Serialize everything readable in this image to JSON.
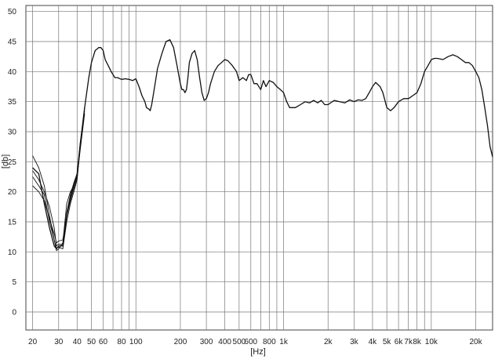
{
  "chart_data": {
    "type": "line",
    "xscale": "log",
    "xlim": [
      18,
      26000
    ],
    "ylim": [
      -3,
      51
    ],
    "grid": true,
    "xlabel": "[Hz]",
    "ylabel": "[db]",
    "yticks": [
      0,
      5,
      10,
      15,
      20,
      25,
      30,
      35,
      40,
      45,
      50
    ],
    "ytick_labels": [
      "0",
      "5",
      "10",
      "15",
      "20",
      "25",
      "30",
      "35",
      "40",
      "45",
      "50"
    ],
    "xticks": [
      20,
      30,
      40,
      50,
      60,
      80,
      100,
      200,
      300,
      400,
      500,
      600,
      800,
      1000,
      2000,
      3000,
      4000,
      5000,
      6000,
      7000,
      8000,
      10000,
      20000
    ],
    "xtick_labels": [
      "20",
      "30",
      "40",
      "50",
      "60",
      "80",
      "100",
      "200",
      "300",
      "400",
      "500",
      "600",
      "800",
      "1k",
      "2k",
      "3k",
      "4k",
      "5k",
      "6k",
      "7k",
      "8k",
      "10k",
      "20k"
    ],
    "x_minor_gridlines": [
      70,
      90,
      700,
      900,
      9000
    ],
    "series": [
      {
        "x": [
          20,
          22,
          24,
          26,
          28,
          29,
          30,
          32,
          34,
          36,
          38,
          40,
          42,
          45,
          48,
          50,
          53,
          56,
          58,
          60,
          62,
          65,
          68,
          72,
          75,
          80,
          85,
          90,
          95,
          100,
          105,
          110,
          115,
          118,
          122,
          125,
          128,
          132,
          136,
          140,
          150,
          160,
          170,
          180,
          190,
          200,
          205,
          210,
          215,
          220,
          225,
          230,
          240,
          250,
          260,
          270,
          280,
          290,
          300,
          310,
          320,
          340,
          360,
          380,
          400,
          420,
          450,
          480,
          500,
          530,
          560,
          580,
          600,
          630,
          660,
          700,
          730,
          760,
          800,
          850,
          900,
          950,
          1000,
          1050,
          1100,
          1200,
          1300,
          1400,
          1500,
          1600,
          1700,
          1800,
          1900,
          2000,
          2200,
          2400,
          2600,
          2800,
          3000,
          3200,
          3400,
          3600,
          3800,
          4000,
          4200,
          4500,
          4700,
          5000,
          5300,
          5600,
          6000,
          6500,
          7000,
          7500,
          8000,
          8500,
          9000,
          9500,
          10000,
          10500,
          11000,
          12000,
          13000,
          14000,
          15000,
          16000,
          17000,
          18000,
          19000,
          20000,
          21000,
          22000,
          23000,
          24000,
          25000,
          26000
        ],
        "values": [
          24,
          23,
          18,
          14,
          11,
          10.5,
          11,
          11,
          16,
          19,
          21,
          23,
          28,
          34,
          39,
          41.5,
          43.5,
          44,
          44,
          43.5,
          42,
          41,
          40,
          39,
          39,
          38.7,
          38.8,
          38.7,
          38.5,
          38.8,
          37.5,
          36,
          35,
          34,
          33.8,
          33.5,
          34.5,
          36.5,
          38.5,
          40.5,
          43,
          45,
          45.3,
          44,
          41,
          38,
          37,
          37,
          36.5,
          37,
          39,
          41.5,
          43,
          43.5,
          42,
          39,
          36.5,
          35.2,
          35.5,
          36.5,
          38,
          40,
          41,
          41.5,
          42,
          41.8,
          41,
          40,
          38.5,
          39,
          38.5,
          39.5,
          39.5,
          38,
          38,
          37,
          38.5,
          37.5,
          38.5,
          38.2,
          37.5,
          37,
          36.5,
          35,
          34,
          34,
          34.5,
          35,
          34.8,
          35.2,
          34.8,
          35.2,
          34.5,
          34.5,
          35.2,
          35,
          34.8,
          35.3,
          35,
          35.3,
          35.2,
          35.5,
          36.5,
          37.5,
          38.2,
          37.5,
          36.5,
          34,
          33.5,
          34,
          35,
          35.5,
          35.5,
          36,
          36.5,
          38,
          40,
          41,
          42,
          42.2,
          42.2,
          42,
          42.5,
          42.8,
          42.5,
          42,
          41.5,
          41.5,
          41,
          40,
          39,
          37,
          34,
          31,
          27.5,
          25.8
        ]
      },
      {
        "x": [
          20,
          22,
          24,
          26,
          28,
          29,
          30,
          32,
          34,
          36,
          38,
          40,
          42,
          45
        ],
        "values": [
          26,
          24,
          21,
          16,
          12,
          10.2,
          10.5,
          11.5,
          18,
          20,
          21,
          22.5,
          27,
          33
        ]
      },
      {
        "x": [
          20,
          22,
          24,
          26,
          28,
          29,
          30,
          32,
          34,
          36,
          38,
          40,
          42,
          45
        ],
        "values": [
          22.5,
          21,
          19.5,
          15,
          12,
          10.6,
          10.8,
          10.5,
          15,
          18,
          20,
          22,
          27.5,
          34
        ]
      },
      {
        "x": [
          20,
          22,
          24,
          26,
          28,
          29,
          30,
          32,
          34,
          36,
          38,
          40,
          42,
          45
        ],
        "values": [
          21,
          20,
          18.5,
          15.5,
          13,
          11.5,
          11.8,
          12,
          16,
          18.5,
          20.5,
          22.2,
          28,
          34
        ]
      },
      {
        "x": [
          20,
          22,
          24,
          26,
          28,
          29,
          30,
          32,
          34,
          36,
          38,
          40,
          42,
          45
        ],
        "values": [
          23.5,
          22,
          20,
          17.5,
          14,
          11,
          11.3,
          11.2,
          16.5,
          19.5,
          21.5,
          23,
          28,
          33.5
        ]
      }
    ]
  }
}
